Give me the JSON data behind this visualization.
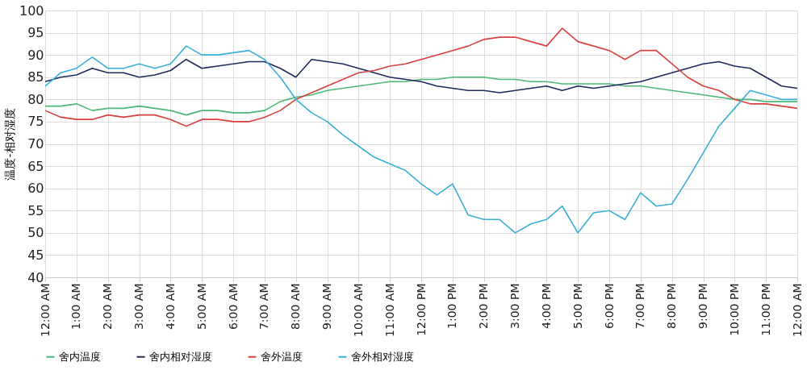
{
  "chart_data": {
    "type": "line",
    "ylabel": "温度-相对湿度",
    "ylim": [
      40,
      100
    ],
    "yticks": [
      40,
      45,
      50,
      55,
      60,
      65,
      70,
      75,
      80,
      85,
      90,
      95,
      100
    ],
    "xlim": [
      0,
      24
    ],
    "xticks": [
      {
        "value": 0,
        "label": "12:00 AM"
      },
      {
        "value": 1,
        "label": "1:00 AM"
      },
      {
        "value": 2,
        "label": "2:00 AM"
      },
      {
        "value": 3,
        "label": "3:00 AM"
      },
      {
        "value": 4,
        "label": "4:00 AM"
      },
      {
        "value": 5,
        "label": "5:00 AM"
      },
      {
        "value": 6,
        "label": "6:00 AM"
      },
      {
        "value": 7,
        "label": "7:00 AM"
      },
      {
        "value": 8,
        "label": "8:00 AM"
      },
      {
        "value": 9,
        "label": "9:00 AM"
      },
      {
        "value": 10,
        "label": "10:00 AM"
      },
      {
        "value": 11,
        "label": "11:00 AM"
      },
      {
        "value": 12,
        "label": "12:00 PM"
      },
      {
        "value": 13,
        "label": "1:00 PM"
      },
      {
        "value": 14,
        "label": "2:00 PM"
      },
      {
        "value": 15,
        "label": "3:00 PM"
      },
      {
        "value": 16,
        "label": "4:00 PM"
      },
      {
        "value": 17,
        "label": "5:00 PM"
      },
      {
        "value": 18,
        "label": "6:00 PM"
      },
      {
        "value": 19,
        "label": "7:00 PM"
      },
      {
        "value": 20,
        "label": "8:00 PM"
      },
      {
        "value": 21,
        "label": "9:00 PM"
      },
      {
        "value": 22,
        "label": "10:00 PM"
      },
      {
        "value": 23,
        "label": "11:00 PM"
      },
      {
        "value": 24,
        "label": "12:00 AM"
      }
    ],
    "x": [
      0,
      0.5,
      1,
      1.5,
      2,
      2.5,
      3,
      3.5,
      4,
      4.5,
      5,
      5.5,
      6,
      6.5,
      7,
      7.5,
      8,
      8.5,
      9,
      9.5,
      10,
      10.5,
      11,
      11.5,
      12,
      12.5,
      13,
      13.5,
      14,
      14.5,
      15,
      15.5,
      16,
      16.5,
      17,
      17.5,
      18,
      18.5,
      19,
      19.5,
      20,
      20.5,
      21,
      21.5,
      22,
      22.5,
      23,
      23.5,
      24
    ],
    "grid": true,
    "legend": "bottom",
    "marker": "none",
    "line_style": "solid",
    "series": [
      {
        "name": "舍内温度",
        "color": "#4cb877",
        "values": [
          78.5,
          78.5,
          79,
          77.5,
          78,
          78,
          78.5,
          78,
          77.5,
          76.5,
          77.5,
          77.5,
          77,
          77,
          77.5,
          79.5,
          80.5,
          81,
          82,
          82.5,
          83,
          83.5,
          84,
          84,
          84.5,
          84.5,
          85,
          85,
          85,
          84.5,
          84.5,
          84,
          84,
          83.5,
          83.5,
          83.5,
          83.5,
          83,
          83,
          82.5,
          82,
          81.5,
          81,
          80.5,
          80,
          80,
          79.5,
          79.5,
          79.5
        ]
      },
      {
        "name": "舍内相对湿度",
        "color": "#1f2a5c",
        "values": [
          84,
          85,
          85.5,
          87,
          86,
          86,
          85,
          85.5,
          86.5,
          89,
          87,
          87.5,
          88,
          88.5,
          88.5,
          87,
          85,
          89,
          88.5,
          88,
          87,
          86,
          85,
          84.5,
          84,
          83,
          82.5,
          82,
          82,
          81.5,
          82,
          82.5,
          83,
          82,
          83,
          82.5,
          83,
          83.5,
          84,
          85,
          86,
          87,
          88,
          88.5,
          87.5,
          87,
          85,
          83,
          82.5
        ]
      },
      {
        "name": "舍外温度",
        "color": "#d9403f",
        "values": [
          77.5,
          76,
          75.5,
          75.5,
          76.5,
          76,
          76.5,
          76.5,
          75.5,
          74,
          75.5,
          75.5,
          75,
          75,
          76,
          77.5,
          80,
          81.5,
          83,
          84.5,
          86,
          86.5,
          87.5,
          88,
          89,
          90,
          91,
          92,
          93.5,
          94,
          94,
          93,
          92,
          96,
          93,
          92,
          91,
          89,
          91,
          91,
          88,
          85,
          83,
          82,
          80,
          79,
          79,
          78.5,
          78
        ]
      },
      {
        "name": "舍外相对湿度",
        "color": "#3ab0d8",
        "values": [
          83,
          86,
          87,
          89.5,
          87,
          87,
          88,
          87,
          88,
          92,
          90,
          90,
          90.5,
          91,
          89,
          85,
          80,
          77,
          75,
          72,
          69.5,
          67,
          65.5,
          64,
          61,
          58.5,
          61,
          54,
          53,
          53,
          50,
          52,
          53,
          56,
          50,
          54.5,
          55,
          53,
          59,
          56,
          56.5,
          62,
          68,
          74,
          78,
          82,
          81,
          80,
          80
        ]
      }
    ]
  }
}
